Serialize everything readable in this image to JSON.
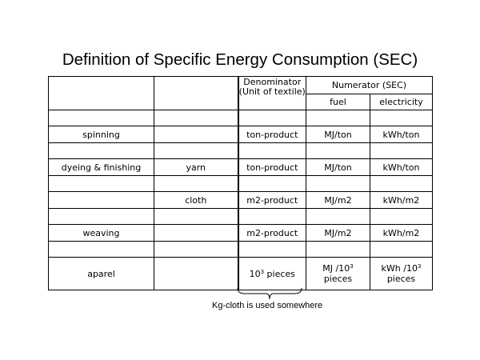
{
  "title": "Definition of Specific Energy Consumption (SEC)",
  "header": {
    "denominator": "Denominator (Unit of textile)",
    "numerator": "Numerator (SEC)",
    "fuel": "fuel",
    "electricity": "electricity"
  },
  "rows": {
    "spinning": {
      "process": "spinning",
      "unit": "ton-product",
      "fuel": "MJ/ton",
      "electricity": "kWh/ton"
    },
    "dyeing_yarn": {
      "process": "dyeing & finishing",
      "sub": "yarn",
      "unit": "ton-product",
      "fuel": "MJ/ton",
      "electricity": "kWh/ton"
    },
    "dyeing_cloth": {
      "sub": "cloth",
      "unit": "m2-product",
      "fuel": "MJ/m2",
      "electricity": "kWh/m2"
    },
    "weaving": {
      "process": "weaving",
      "unit": "m2-product",
      "fuel": "MJ/m2",
      "electricity": "kWh/m2"
    },
    "aparel": {
      "process": "aparel",
      "unit_base": "10",
      "unit_exp": "3",
      "unit_rest": " pieces",
      "fuel_pre": "MJ /10",
      "fuel_exp": "3",
      "fuel_post": "pieces",
      "elec_pre": "kWh /10",
      "elec_exp": "3",
      "elec_post": "pieces"
    }
  },
  "note": "Kg-cloth is used somewhere"
}
